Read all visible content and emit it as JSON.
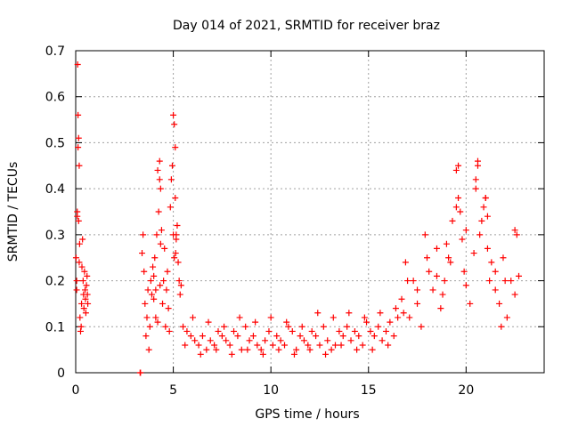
{
  "chart_data": {
    "type": "scatter",
    "title": "Day 014 of 2021, SRMTID for receiver braz",
    "xlabel": "GPS time / hours",
    "ylabel": "SRMTID / TECUs",
    "xlim": [
      0,
      24
    ],
    "ylim": [
      0,
      0.7
    ],
    "xticks": [
      0,
      5,
      10,
      15,
      20
    ],
    "yticks": [
      0,
      0.1,
      0.2,
      0.3,
      0.4,
      0.5,
      0.6,
      0.7
    ],
    "xtick_labels": [
      "0",
      "5",
      "10",
      "15",
      "20"
    ],
    "ytick_labels": [
      "0",
      "0.1",
      "0.2",
      "0.3",
      "0.4",
      "0.5",
      "0.6",
      "0.7"
    ],
    "grid": true,
    "marker": "+",
    "series_color": "#ff0000",
    "series": [
      {
        "name": "SRMTID",
        "x": [
          0.02,
          0.05,
          0.08,
          0.1,
          0.12,
          0.15,
          0.18,
          0.2,
          0.22,
          0.25,
          0.28,
          0.3,
          0.32,
          0.35,
          0.38,
          0.4,
          0.42,
          0.45,
          0.48,
          0.5,
          0.52,
          0.55,
          0.58,
          0.6,
          0.62,
          0.05,
          0.08,
          0.12,
          0.15,
          0.18,
          3.3,
          3.32,
          3.4,
          3.45,
          3.5,
          3.55,
          3.6,
          3.65,
          3.7,
          3.75,
          3.8,
          3.85,
          3.9,
          3.95,
          4.0,
          4.05,
          4.1,
          4.15,
          4.2,
          4.25,
          4.3,
          4.35,
          4.4,
          4.45,
          4.5,
          4.55,
          4.6,
          4.65,
          4.7,
          4.75,
          4.8,
          4.85,
          4.9,
          4.95,
          5.0,
          5.05,
          5.1,
          5.15,
          5.2,
          5.25,
          5.3,
          5.35,
          5.4,
          4.3,
          4.35,
          4.32,
          5.0,
          5.05,
          5.1,
          5.15,
          5.12,
          4.0,
          4.1,
          4.2,
          5.5,
          5.7,
          5.9,
          6.1,
          6.3,
          6.5,
          6.7,
          6.9,
          7.1,
          7.3,
          7.5,
          7.7,
          7.9,
          8.1,
          8.3,
          8.5,
          8.7,
          8.9,
          9.1,
          9.3,
          9.5,
          9.7,
          9.9,
          10.1,
          10.3,
          10.5,
          10.7,
          10.9,
          11.1,
          11.3,
          11.5,
          11.7,
          11.9,
          12.1,
          12.3,
          12.5,
          12.7,
          12.9,
          13.1,
          13.3,
          13.5,
          13.7,
          13.9,
          14.1,
          14.3,
          14.5,
          14.7,
          14.9,
          15.1,
          15.3,
          15.5,
          15.7,
          15.9,
          16.1,
          16.3,
          16.5,
          5.6,
          6.0,
          6.4,
          6.8,
          7.2,
          7.6,
          8.0,
          8.4,
          8.8,
          9.2,
          9.6,
          10.0,
          10.4,
          10.8,
          11.2,
          11.6,
          12.0,
          12.4,
          12.8,
          13.2,
          13.6,
          14.0,
          14.4,
          14.8,
          15.2,
          15.6,
          16.0,
          16.4,
          16.7,
          16.9,
          17.1,
          17.3,
          17.5,
          17.7,
          17.9,
          18.1,
          18.3,
          18.5,
          18.7,
          18.9,
          19.1,
          19.3,
          19.5,
          19.6,
          19.7,
          19.8,
          19.9,
          20.0,
          20.2,
          20.4,
          20.5,
          20.6,
          20.7,
          20.8,
          20.9,
          21.0,
          21.1,
          21.2,
          21.3,
          21.5,
          21.7,
          21.9,
          22.1,
          22.3,
          22.5,
          22.7,
          19.5,
          19.6,
          20.5,
          20.6,
          21.0,
          21.1,
          22.5,
          22.6,
          18.5,
          18.0,
          17.5,
          19.0,
          20.0,
          21.5,
          22.0,
          17.0,
          16.8,
          18.8,
          19.2,
          21.8
        ],
        "y": [
          0.25,
          0.18,
          0.34,
          0.67,
          0.56,
          0.51,
          0.45,
          0.28,
          0.12,
          0.09,
          0.1,
          0.15,
          0.23,
          0.29,
          0.2,
          0.17,
          0.14,
          0.22,
          0.18,
          0.16,
          0.13,
          0.19,
          0.21,
          0.17,
          0.15,
          0.2,
          0.35,
          0.49,
          0.33,
          0.24,
          0.0,
          0.0,
          0.26,
          0.3,
          0.22,
          0.15,
          0.08,
          0.12,
          0.18,
          0.05,
          0.1,
          0.2,
          0.17,
          0.23,
          0.21,
          0.25,
          0.18,
          0.3,
          0.44,
          0.35,
          0.46,
          0.4,
          0.31,
          0.15,
          0.2,
          0.27,
          0.1,
          0.18,
          0.22,
          0.14,
          0.09,
          0.36,
          0.42,
          0.45,
          0.3,
          0.25,
          0.38,
          0.29,
          0.32,
          0.24,
          0.2,
          0.17,
          0.19,
          0.42,
          0.28,
          0.19,
          0.56,
          0.54,
          0.49,
          0.3,
          0.26,
          0.16,
          0.12,
          0.11,
          0.1,
          0.09,
          0.08,
          0.07,
          0.06,
          0.08,
          0.05,
          0.07,
          0.06,
          0.09,
          0.08,
          0.07,
          0.06,
          0.09,
          0.08,
          0.05,
          0.1,
          0.07,
          0.08,
          0.06,
          0.05,
          0.07,
          0.09,
          0.06,
          0.08,
          0.07,
          0.06,
          0.1,
          0.09,
          0.05,
          0.08,
          0.07,
          0.06,
          0.09,
          0.08,
          0.06,
          0.1,
          0.07,
          0.05,
          0.06,
          0.09,
          0.08,
          0.1,
          0.07,
          0.09,
          0.08,
          0.06,
          0.11,
          0.09,
          0.08,
          0.1,
          0.07,
          0.09,
          0.11,
          0.08,
          0.12,
          0.06,
          0.12,
          0.04,
          0.11,
          0.05,
          0.1,
          0.04,
          0.12,
          0.05,
          0.11,
          0.04,
          0.12,
          0.05,
          0.11,
          0.04,
          0.1,
          0.05,
          0.13,
          0.04,
          0.12,
          0.06,
          0.13,
          0.05,
          0.12,
          0.05,
          0.13,
          0.06,
          0.14,
          0.16,
          0.24,
          0.12,
          0.2,
          0.15,
          0.1,
          0.3,
          0.22,
          0.18,
          0.27,
          0.14,
          0.2,
          0.25,
          0.33,
          0.44,
          0.38,
          0.35,
          0.29,
          0.22,
          0.31,
          0.15,
          0.26,
          0.42,
          0.46,
          0.3,
          0.33,
          0.36,
          0.38,
          0.27,
          0.2,
          0.24,
          0.18,
          0.15,
          0.25,
          0.12,
          0.2,
          0.17,
          0.21,
          0.36,
          0.45,
          0.4,
          0.45,
          0.38,
          0.34,
          0.31,
          0.3,
          0.21,
          0.25,
          0.18,
          0.28,
          0.19,
          0.22,
          0.2,
          0.2,
          0.13,
          0.17,
          0.24,
          0.1
        ]
      }
    ]
  }
}
